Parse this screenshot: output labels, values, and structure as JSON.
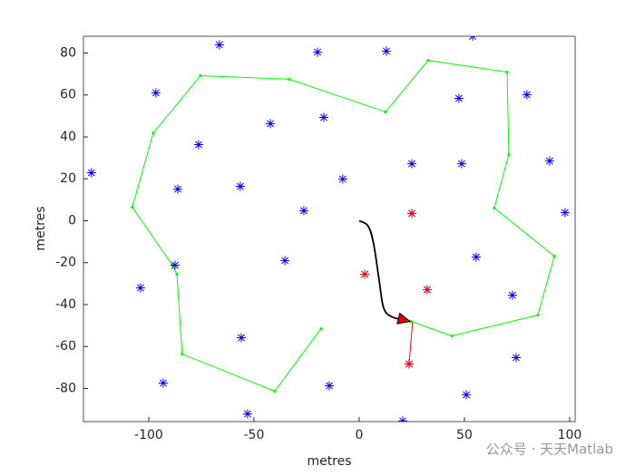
{
  "chart_data": {
    "type": "line",
    "xlabel": "metres",
    "ylabel": "metres",
    "xlim": [
      -131,
      102.6
    ],
    "ylim": [
      -95.8,
      88
    ],
    "xticks": [
      -100,
      -50,
      0,
      50,
      100
    ],
    "yticks": [
      -80,
      -60,
      -40,
      -20,
      0,
      20,
      40,
      60,
      80
    ],
    "grid": false,
    "series": [
      {
        "color": "#00ff00",
        "marker": ".",
        "line": true,
        "arrow": false,
        "x": [
          -18.1,
          -40.1,
          -84.1,
          -86.6,
          -88.8,
          -107.8,
          -97.8,
          -75.4,
          -33.2,
          12.5,
          32.8,
          70.3,
          71.1,
          64.2,
          92.7,
          84.9,
          44.0,
          24.6
        ],
        "y": [
          -51.5,
          -81.3,
          -63.6,
          -25.5,
          -21.2,
          6.5,
          41.9,
          69.2,
          67.5,
          51.9,
          76.5,
          70.9,
          31.6,
          6.1,
          -16.9,
          -45.0,
          -54.9,
          -48.0
        ]
      },
      {
        "color": "#0000ff",
        "marker": "*",
        "line": false,
        "arrow": false,
        "x": [
          -127.2,
          -66.4,
          -19.8,
          12.9,
          53.9,
          -96.6,
          47.4,
          79.7,
          -42.2,
          -16.8,
          -76.3,
          25.0,
          48.7,
          90.5,
          -7.8,
          -86.2,
          -56.5,
          -26.3,
          97.8,
          25.0,
          -35.3,
          55.6,
          -87.5,
          2.6,
          -103.9,
          32.3,
          72.8,
          -56.0,
          74.6,
          23.7,
          -93.1,
          -14.2,
          50.9,
          -53.0,
          20.7
        ],
        "y": [
          22.9,
          83.9,
          80.4,
          80.9,
          88.0,
          61.0,
          58.4,
          60.1,
          46.3,
          49.3,
          36.3,
          27.2,
          27.2,
          28.5,
          19.9,
          15.1,
          16.4,
          4.8,
          3.9,
          3.5,
          -19.0,
          -17.3,
          -21.2,
          -25.5,
          -32.0,
          -32.9,
          -35.5,
          -55.8,
          -65.3,
          -68.3,
          -77.4,
          -78.7,
          -83.0,
          -92.1,
          -95.5
        ]
      },
      {
        "color": "#ff0000",
        "marker": "*",
        "line": false,
        "arrow": false,
        "x": [
          25.0,
          2.6,
          32.3,
          23.7
        ],
        "y": [
          3.5,
          -25.5,
          -32.9,
          -68.3
        ]
      },
      {
        "color": "#ff0000",
        "marker": "none",
        "line": true,
        "arrow": false,
        "x": [
          25.4,
          23.7
        ],
        "y": [
          -48.0,
          -68.3
        ]
      },
      {
        "color": "#000000",
        "marker": "none",
        "line": true,
        "arrow": true,
        "x": [
          0,
          4.3,
          6.9,
          9.5,
          11.6,
          15.5,
          24.1
        ],
        "y": [
          0,
          -2.6,
          -11.2,
          -28.5,
          -41.5,
          -45.8,
          -48.0
        ]
      }
    ],
    "watermark": "公众号 · 天天Matlab"
  }
}
